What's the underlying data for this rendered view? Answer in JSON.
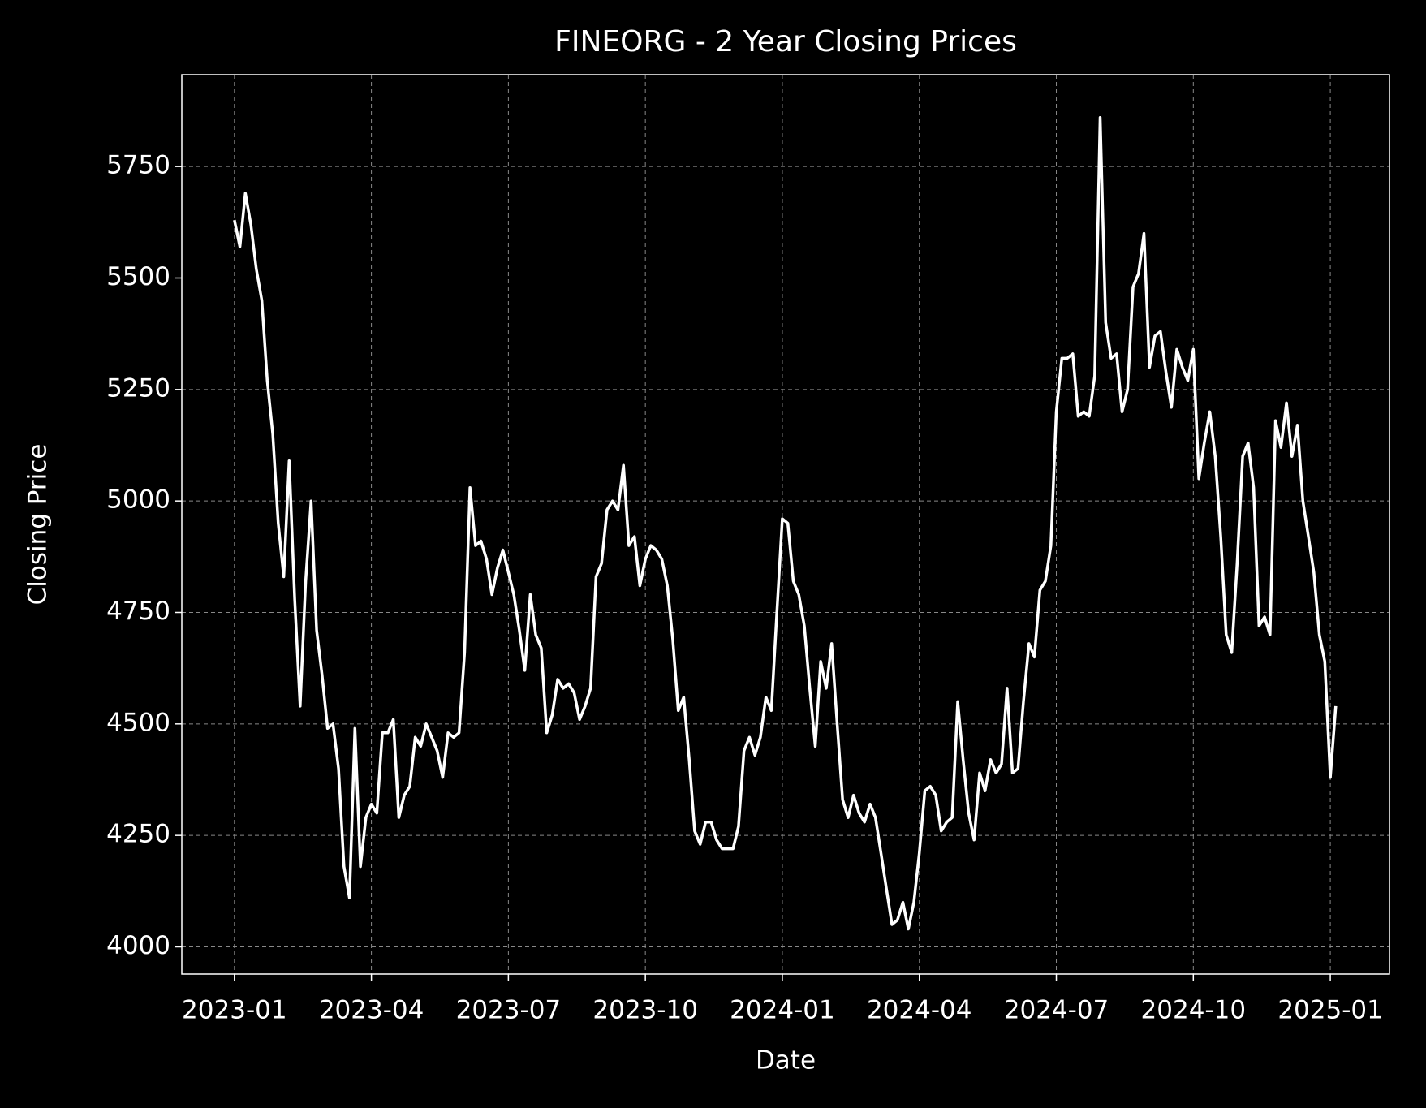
{
  "chart_data": {
    "type": "line",
    "title": "FINEORG - 2 Year Closing Prices",
    "x_label": "Date",
    "y_label": "Closing Price",
    "color": "#ffffff",
    "grid": true,
    "xlim": [
      2022.904,
      2025.108
    ],
    "ylim": [
      3939,
      5956
    ],
    "xticks": [
      {
        "value": 2023.0,
        "label": "2023-01"
      },
      {
        "value": 2023.25,
        "label": "2023-04"
      },
      {
        "value": 2023.5,
        "label": "2023-07"
      },
      {
        "value": 2023.75,
        "label": "2023-10"
      },
      {
        "value": 2024.0,
        "label": "2024-01"
      },
      {
        "value": 2024.25,
        "label": "2024-04"
      },
      {
        "value": 2024.5,
        "label": "2024-07"
      },
      {
        "value": 2024.75,
        "label": "2024-10"
      },
      {
        "value": 2025.0,
        "label": "2025-01"
      }
    ],
    "yticks": [
      4000,
      4250,
      4500,
      4750,
      5000,
      5250,
      5500,
      5750
    ],
    "x": [
      2023.0,
      2023.01,
      2023.02,
      2023.03,
      2023.04,
      2023.05,
      2023.06,
      2023.07,
      2023.08,
      2023.09,
      2023.1,
      2023.11,
      2023.12,
      2023.13,
      2023.14,
      2023.15,
      2023.16,
      2023.17,
      2023.18,
      2023.19,
      2023.2,
      2023.21,
      2023.22,
      2023.23,
      2023.24,
      2023.25,
      2023.26,
      2023.27,
      2023.28,
      2023.29,
      2023.3,
      2023.31,
      2023.32,
      2023.33,
      2023.34,
      2023.35,
      2023.36,
      2023.37,
      2023.38,
      2023.39,
      2023.4,
      2023.41,
      2023.42,
      2023.43,
      2023.44,
      2023.45,
      2023.46,
      2023.47,
      2023.48,
      2023.49,
      2023.5,
      2023.51,
      2023.52,
      2023.53,
      2023.54,
      2023.55,
      2023.56,
      2023.57,
      2023.58,
      2023.59,
      2023.6,
      2023.61,
      2023.62,
      2023.63,
      2023.64,
      2023.65,
      2023.66,
      2023.67,
      2023.68,
      2023.69,
      2023.7,
      2023.71,
      2023.72,
      2023.73,
      2023.74,
      2023.75,
      2023.76,
      2023.77,
      2023.78,
      2023.79,
      2023.8,
      2023.81,
      2023.82,
      2023.83,
      2023.84,
      2023.85,
      2023.86,
      2023.87,
      2023.88,
      2023.89,
      2023.9,
      2023.91,
      2023.92,
      2023.93,
      2023.94,
      2023.95,
      2023.96,
      2023.97,
      2023.98,
      2023.99,
      2024.0,
      2024.01,
      2024.02,
      2024.03,
      2024.04,
      2024.05,
      2024.06,
      2024.07,
      2024.08,
      2024.09,
      2024.1,
      2024.11,
      2024.12,
      2024.13,
      2024.14,
      2024.15,
      2024.16,
      2024.17,
      2024.18,
      2024.19,
      2024.2,
      2024.21,
      2024.22,
      2024.23,
      2024.24,
      2024.25,
      2024.26,
      2024.27,
      2024.28,
      2024.29,
      2024.3,
      2024.31,
      2024.32,
      2024.33,
      2024.34,
      2024.35,
      2024.36,
      2024.37,
      2024.38,
      2024.39,
      2024.4,
      2024.41,
      2024.42,
      2024.43,
      2024.44,
      2024.45,
      2024.46,
      2024.47,
      2024.48,
      2024.49,
      2024.5,
      2024.51,
      2024.52,
      2024.53,
      2024.54,
      2024.55,
      2024.56,
      2024.57,
      2024.58,
      2024.59,
      2024.6,
      2024.61,
      2024.62,
      2024.63,
      2024.64,
      2024.65,
      2024.66,
      2024.67,
      2024.68,
      2024.69,
      2024.7,
      2024.71,
      2024.72,
      2024.73,
      2024.74,
      2024.75,
      2024.76,
      2024.77,
      2024.78,
      2024.79,
      2024.8,
      2024.81,
      2024.82,
      2024.83,
      2024.84,
      2024.85,
      2024.86,
      2024.87,
      2024.88,
      2024.89,
      2024.9,
      2024.91,
      2024.92,
      2024.93,
      2024.94,
      2024.95,
      2024.96,
      2024.97,
      2024.98,
      2024.99,
      2025.0,
      2025.01
    ],
    "values": [
      5630,
      5570,
      5690,
      5620,
      5520,
      5450,
      5270,
      5150,
      4950,
      4830,
      5090,
      4780,
      4540,
      4820,
      5000,
      4710,
      4610,
      4490,
      4500,
      4400,
      4180,
      4110,
      4490,
      4180,
      4290,
      4320,
      4300,
      4480,
      4480,
      4510,
      4290,
      4340,
      4360,
      4470,
      4450,
      4500,
      4470,
      4440,
      4380,
      4480,
      4470,
      4480,
      4660,
      5030,
      4900,
      4910,
      4870,
      4790,
      4850,
      4890,
      4840,
      4790,
      4710,
      4620,
      4790,
      4700,
      4670,
      4480,
      4520,
      4600,
      4580,
      4590,
      4570,
      4510,
      4540,
      4580,
      4830,
      4860,
      4980,
      5000,
      4980,
      5080,
      4900,
      4920,
      4810,
      4870,
      4900,
      4890,
      4870,
      4810,
      4690,
      4530,
      4560,
      4420,
      4260,
      4230,
      4280,
      4280,
      4240,
      4220,
      4220,
      4220,
      4270,
      4440,
      4470,
      4430,
      4470,
      4560,
      4530,
      4750,
      4960,
      4950,
      4820,
      4790,
      4720,
      4580,
      4450,
      4640,
      4580,
      4680,
      4500,
      4330,
      4290,
      4340,
      4300,
      4280,
      4320,
      4290,
      4210,
      4130,
      4050,
      4060,
      4100,
      4040,
      4100,
      4210,
      4350,
      4360,
      4340,
      4260,
      4280,
      4290,
      4550,
      4420,
      4300,
      4240,
      4390,
      4350,
      4420,
      4390,
      4410,
      4580,
      4390,
      4400,
      4550,
      4680,
      4650,
      4800,
      4820,
      4900,
      5200,
      5320,
      5320,
      5330,
      5190,
      5200,
      5190,
      5280,
      5860,
      5400,
      5320,
      5330,
      5200,
      5250,
      5480,
      5510,
      5600,
      5300,
      5370,
      5380,
      5290,
      5210,
      5340,
      5300,
      5270,
      5340,
      5050,
      5130,
      5200,
      5100,
      4920,
      4700,
      4660,
      4860,
      5100,
      5130,
      5030,
      4720,
      4740,
      4700,
      5180,
      5120,
      5220,
      5100,
      5170,
      5000,
      4920,
      4840,
      4700,
      4640,
      4380,
      4540
    ]
  }
}
